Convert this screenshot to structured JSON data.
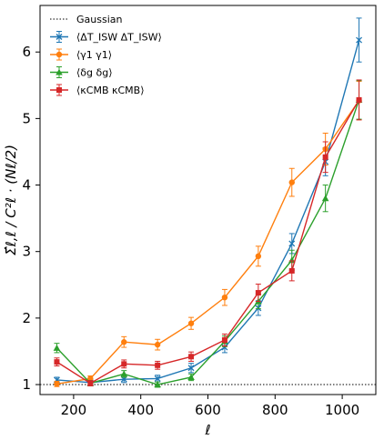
{
  "chart_data": {
    "type": "line",
    "title": "",
    "xlabel": "ℓ",
    "ylabel": "Σ̂ℓ,ℓ / C²ℓ · (Nℓ/2)",
    "xlim": [
      100,
      1100
    ],
    "ylim": [
      0.85,
      6.7
    ],
    "xticks": [
      200,
      400,
      600,
      800,
      1000
    ],
    "yticks": [
      1,
      2,
      3,
      4,
      5,
      6
    ],
    "legend_position": "top-left",
    "reference_line": {
      "name": "Gaussian",
      "y": 1,
      "style": "dotted",
      "color": "#000000"
    },
    "series": [
      {
        "name": "⟨ΔT_ISW ΔT_ISW⟩",
        "color": "#1f77b4",
        "marker": "x",
        "x": [
          150,
          250,
          350,
          450,
          550,
          650,
          750,
          850,
          950,
          1050
        ],
        "y": [
          1.07,
          1.03,
          1.08,
          1.09,
          1.25,
          1.56,
          2.15,
          3.12,
          4.35,
          6.18
        ],
        "err": [
          0.04,
          0.04,
          0.05,
          0.05,
          0.07,
          0.08,
          0.11,
          0.15,
          0.21,
          0.33
        ]
      },
      {
        "name": "⟨γ1 γ1⟩",
        "color": "#ff7f0e",
        "marker": "o",
        "x": [
          150,
          250,
          350,
          450,
          550,
          650,
          750,
          850,
          950,
          1050
        ],
        "y": [
          1.01,
          1.09,
          1.64,
          1.6,
          1.92,
          2.31,
          2.93,
          4.04,
          4.54,
          5.27
        ],
        "err": [
          0.04,
          0.04,
          0.08,
          0.08,
          0.09,
          0.12,
          0.15,
          0.21,
          0.24,
          0.29
        ]
      },
      {
        "name": "⟨δg δg⟩",
        "color": "#2ca02c",
        "marker": "^",
        "x": [
          150,
          250,
          350,
          450,
          550,
          650,
          750,
          850,
          950,
          1050
        ],
        "y": [
          1.55,
          1.02,
          1.16,
          1.0,
          1.11,
          1.65,
          2.25,
          2.87,
          3.8,
          5.28
        ],
        "err": [
          0.07,
          0.04,
          0.05,
          0.04,
          0.05,
          0.08,
          0.11,
          0.15,
          0.2,
          0.29
        ]
      },
      {
        "name": "⟨κCMB κCMB⟩",
        "color": "#d62728",
        "marker": "s",
        "x": [
          150,
          250,
          350,
          450,
          550,
          650,
          750,
          850,
          950,
          1050
        ],
        "y": [
          1.34,
          1.02,
          1.31,
          1.29,
          1.42,
          1.67,
          2.38,
          2.71,
          4.42,
          5.28
        ],
        "err": [
          0.06,
          0.04,
          0.06,
          0.06,
          0.07,
          0.09,
          0.13,
          0.15,
          0.23,
          0.3
        ]
      }
    ]
  }
}
